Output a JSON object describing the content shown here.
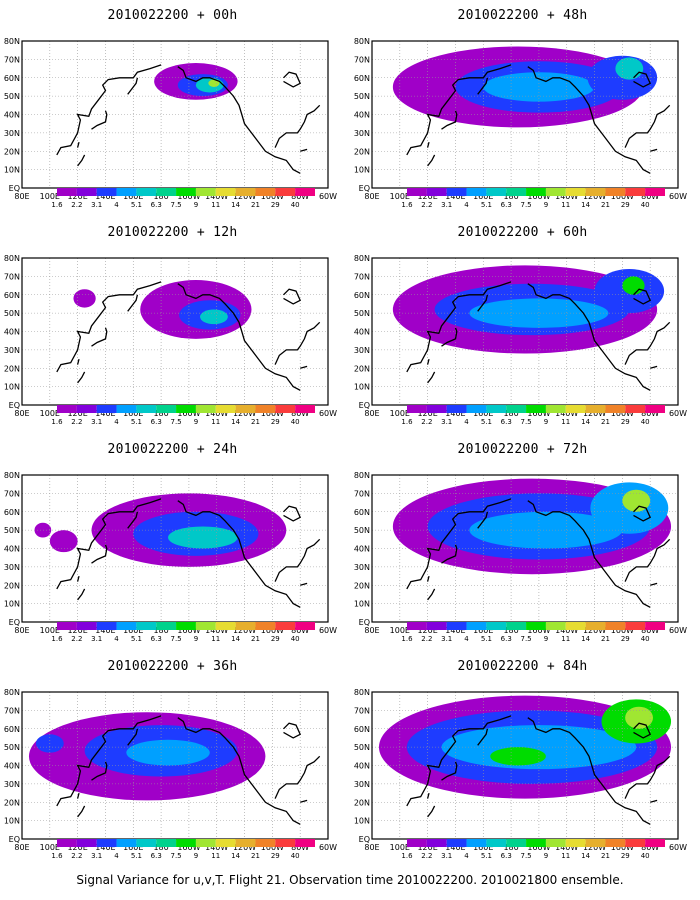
{
  "panels": [
    {
      "title": "2010022200 + 00h"
    },
    {
      "title": "2010022200 + 48h"
    },
    {
      "title": "2010022200 + 12h"
    },
    {
      "title": "2010022200 + 60h"
    },
    {
      "title": "2010022200 + 24h"
    },
    {
      "title": "2010022200 + 72h"
    },
    {
      "title": "2010022200 + 36h"
    },
    {
      "title": "2010022200 + 84h"
    }
  ],
  "lon_labels": [
    "80E",
    "100E",
    "120E",
    "140E",
    "160E",
    "180",
    "160W",
    "140W",
    "120W",
    "100W",
    "80W",
    "60W"
  ],
  "lat_labels": [
    "80N",
    "70N",
    "60N",
    "50N",
    "40N",
    "30N",
    "20N",
    "10N",
    "EQ"
  ],
  "colorbar": {
    "levels": [
      "1.6",
      "2.2",
      "3.1",
      "4",
      "5.1",
      "6.3",
      "7.5",
      "9",
      "11",
      "14",
      "21",
      "29",
      "40"
    ],
    "colors": [
      "#a000c8",
      "#8200dc",
      "#1e3cff",
      "#00a0ff",
      "#00c8c8",
      "#00d28c",
      "#00dc00",
      "#a0e632",
      "#e6dc32",
      "#e6af2d",
      "#f08228",
      "#fa3c3c",
      "#f00082"
    ]
  },
  "footer": "Signal Variance for u,v,T. Flight 21. Observation time 2010022200. 2010021800 ensemble."
}
